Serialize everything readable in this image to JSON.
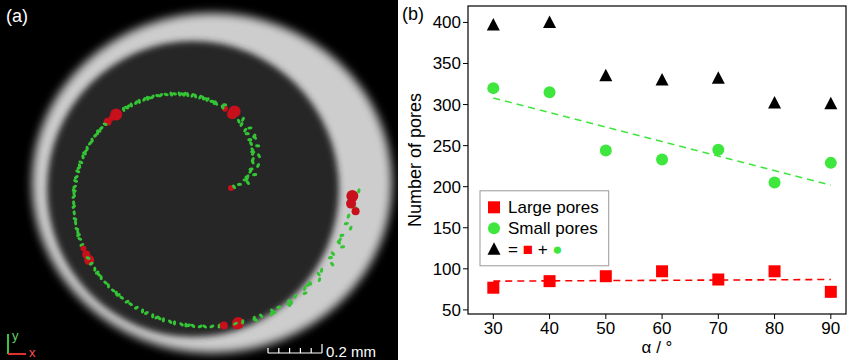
{
  "image": {
    "panel_label": "(a)",
    "scale_bar": "0.2 mm",
    "axis_labels": {
      "x": "x",
      "y": "y"
    }
  },
  "chart_data": {
    "type": "scatter",
    "title": "(b)",
    "x_label": "α / °",
    "y_label": "Number of pores",
    "xlim": [
      25.5,
      92.7
    ],
    "xticks": [
      30,
      40,
      50,
      60,
      70,
      80,
      90
    ],
    "ylim": [
      45,
      420
    ],
    "yticks": [
      50,
      100,
      150,
      200,
      250,
      300,
      350,
      400
    ],
    "grid": false,
    "legend": "center left",
    "series": [
      {
        "name": "Large pores",
        "color": "#ff0000",
        "marker": "square",
        "x": [
          30,
          40,
          50,
          60,
          70,
          80,
          90
        ],
        "values": [
          77,
          85,
          91,
          97,
          87,
          97,
          72
        ],
        "trend": {
          "x": [
            30,
            90
          ],
          "values": [
            85,
            87
          ],
          "line_style": "dashed"
        }
      },
      {
        "name": "Small pores",
        "color": "#3ee63e",
        "marker": "circle",
        "x": [
          30,
          40,
          50,
          60,
          70,
          80,
          90
        ],
        "values": [
          320,
          315,
          244,
          233,
          245,
          205,
          229
        ],
        "trend": {
          "x": [
            30,
            90
          ],
          "values": [
            308,
            202
          ],
          "line_style": "dashed"
        }
      },
      {
        "name": "= ■ + ●",
        "color": "#000000",
        "marker": "triangle",
        "x": [
          30,
          40,
          50,
          60,
          70,
          80,
          90
        ],
        "values": [
          397,
          400,
          335,
          330,
          332,
          302,
          301
        ]
      }
    ]
  }
}
